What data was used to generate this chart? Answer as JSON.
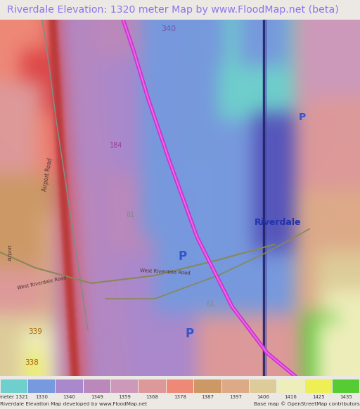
{
  "title": "Riverdale Elevation: 1320 meter Map by www.FloodMap.net (beta)",
  "title_color": "#8877ee",
  "title_fontsize": 10.2,
  "bg_color": "#ece9e4",
  "footer_left": "Riverdale Elevation Map developed by www.FloodMap.net",
  "footer_right": "Base map © OpenStreetMap contributors",
  "legend_labels": [
    "meter 1321",
    "1330",
    "1340",
    "1349",
    "1359",
    "1368",
    "1378",
    "1387",
    "1397",
    "1406",
    "1416",
    "1425",
    "1435"
  ],
  "legend_colors": [
    "#6ecfcc",
    "#7799dd",
    "#aa88cc",
    "#bb88bb",
    "#cc99bb",
    "#dd9999",
    "#ee8877",
    "#cc9966",
    "#ddaa88",
    "#ddcc99",
    "#eeeebb",
    "#eeee55",
    "#55cc33"
  ],
  "fig_width": 5.12,
  "fig_height": 5.82,
  "dpi": 100
}
